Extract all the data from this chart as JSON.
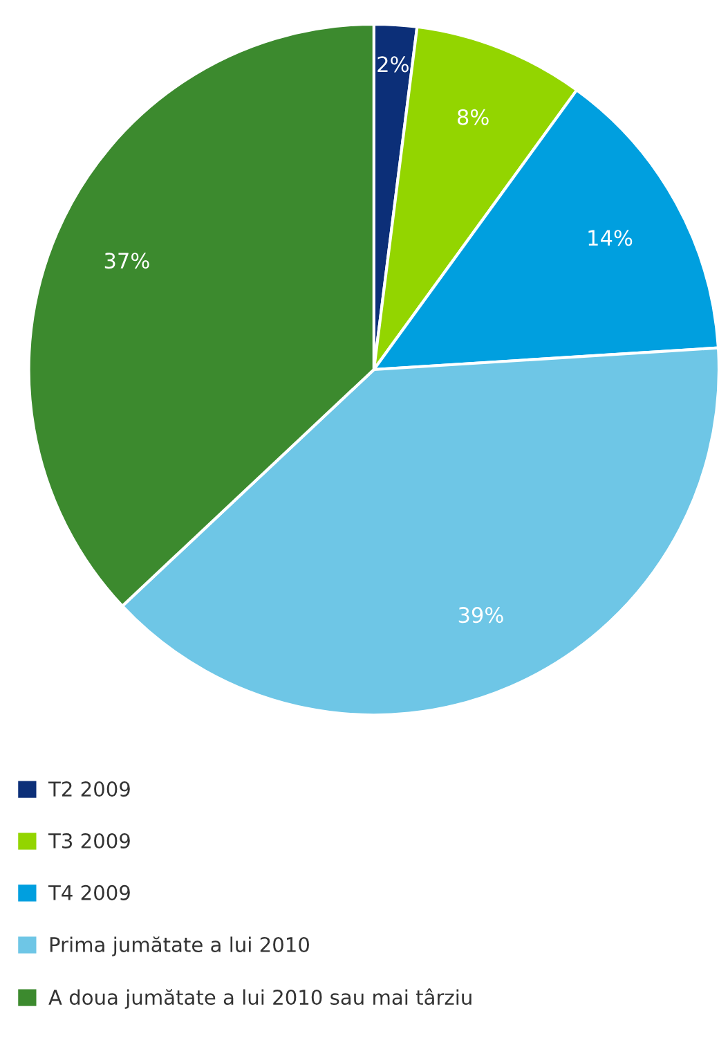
{
  "chart_data": {
    "type": "pie",
    "categories": [
      "T2 2009",
      "T3 2009",
      "T4 2009",
      "Prima jumătate a lui 2010",
      "A doua jumătate a lui 2010 sau mai târziu"
    ],
    "values": [
      2,
      8,
      14,
      39,
      37
    ],
    "colors": [
      "#0c2f78",
      "#93d500",
      "#009fdf",
      "#6ec6e6",
      "#3c8a2e"
    ],
    "value_labels": [
      "2%",
      "8%",
      "14%",
      "39%",
      "37%"
    ],
    "legend": "bottom"
  }
}
